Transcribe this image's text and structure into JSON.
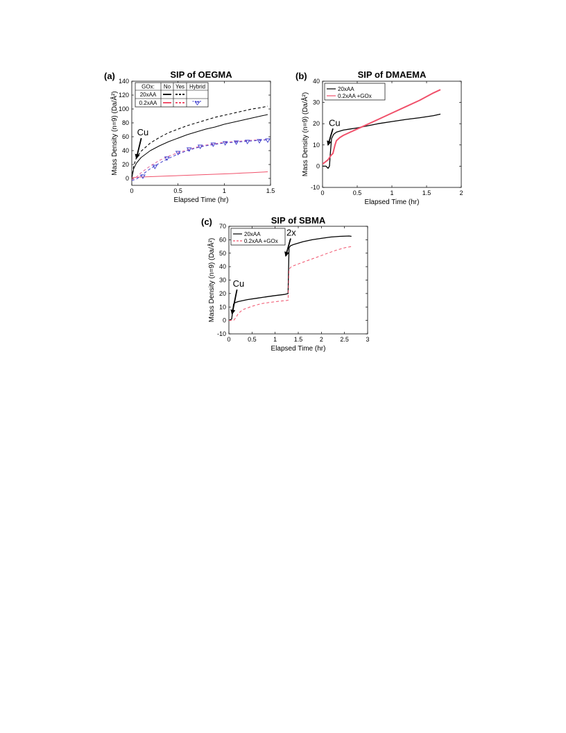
{
  "chart_data": [
    {
      "id": "a",
      "type": "line",
      "panel_label": "(a)",
      "title": "SIP of OEGMA",
      "xlabel": "Elapsed Time (hr)",
      "ylabel": "Mass Density (n=9) (Da/Å²)",
      "xlim": [
        0,
        1.5
      ],
      "ylim": [
        -10,
        140
      ],
      "xticks": [
        0,
        0.5,
        1,
        1.5
      ],
      "xtick_labels": [
        "0",
        "0.5",
        "1",
        "1.5"
      ],
      "yticks": [
        0,
        20,
        40,
        60,
        80,
        100,
        120,
        140
      ],
      "ytick_labels": [
        "0",
        "20",
        "40",
        "60",
        "80",
        "100",
        "120",
        "140"
      ],
      "annotations": [
        {
          "text": "Cu",
          "x": 0.05,
          "y": 62,
          "arrow_to": [
            0.05,
            29
          ]
        }
      ],
      "legend_table": {
        "header": [
          "GOx:",
          "No",
          "Yes",
          "Hybrid"
        ],
        "rows": [
          {
            "label": "20xAA",
            "no_color": "#000000",
            "yes_color": "#000000"
          },
          {
            "label": "0.2xAA",
            "no_color": "#f0506a",
            "yes_color": "#f0506a",
            "hybrid_color": "#3a3acc"
          }
        ]
      },
      "series": [
        {
          "color": "#000000",
          "style": "solid",
          "width": 1,
          "x": [
            0,
            0.02,
            0.05,
            0.1,
            0.2,
            0.3,
            0.4,
            0.5,
            0.6,
            0.7,
            0.8,
            0.9,
            1.0,
            1.1,
            1.2,
            1.3,
            1.4,
            1.47
          ],
          "y": [
            0,
            14,
            22,
            30,
            40,
            47,
            53,
            58,
            63,
            67,
            71,
            74,
            78,
            81,
            84,
            87,
            90,
            92
          ]
        },
        {
          "color": "#000000",
          "style": "dashed",
          "width": 1.1,
          "x": [
            0,
            0.02,
            0.05,
            0.1,
            0.2,
            0.3,
            0.4,
            0.5,
            0.6,
            0.7,
            0.8,
            0.9,
            1.0,
            1.1,
            1.2,
            1.3,
            1.4,
            1.47
          ],
          "y": [
            0,
            18,
            30,
            39,
            51,
            59,
            66,
            71,
            76,
            80,
            84,
            88,
            91,
            94,
            97,
            100,
            102,
            104
          ]
        },
        {
          "color": "#f0506a",
          "style": "solid",
          "width": 1,
          "x": [
            0,
            0.1,
            0.2,
            0.3,
            0.4,
            0.5,
            0.6,
            0.7,
            0.8,
            0.9,
            1.0,
            1.1,
            1.2,
            1.3,
            1.4,
            1.47
          ],
          "y": [
            1,
            2,
            2.5,
            3,
            3.5,
            4,
            4.5,
            5,
            5.5,
            6,
            6.5,
            7,
            7.7,
            8.3,
            9,
            9.5
          ]
        },
        {
          "color": "#e0609a",
          "style": "dashed",
          "width": 1,
          "x": [
            0,
            0.05,
            0.1,
            0.15,
            0.2,
            0.3,
            0.4,
            0.5,
            0.6,
            0.7,
            0.8,
            0.9,
            1.0,
            1.1,
            1.2,
            1.3,
            1.4,
            1.47
          ],
          "y": [
            -2,
            2,
            8,
            13,
            18,
            26,
            32,
            37,
            41,
            45,
            48,
            50,
            52,
            53,
            54,
            55,
            55.5,
            56
          ]
        },
        {
          "color": "#3a3acc",
          "style": "dashed",
          "width": 1,
          "x": [
            0,
            0.05,
            0.1,
            0.15,
            0.2,
            0.3,
            0.4,
            0.5,
            0.6,
            0.7,
            0.8,
            0.9,
            1.0,
            1.1,
            1.2,
            1.3,
            1.4,
            1.47
          ],
          "y": [
            -3,
            -1,
            4,
            9,
            14,
            22,
            29,
            35,
            40,
            44,
            47,
            49,
            51,
            52,
            53,
            54,
            55,
            55.5
          ]
        },
        {
          "color": "#3a3acc",
          "style": "triangles",
          "x": [
            0.12,
            0.25,
            0.38,
            0.5,
            0.62,
            0.74,
            0.88,
            1.01,
            1.13,
            1.25,
            1.38,
            1.47
          ],
          "y": [
            3,
            17,
            29,
            37,
            42,
            46,
            49,
            51,
            52,
            53,
            54,
            55
          ]
        }
      ]
    },
    {
      "id": "b",
      "type": "line",
      "panel_label": "(b)",
      "title": "SIP of DMAEMA",
      "xlabel": "Elapsed Time (hr)",
      "ylabel": "Mass Density (n=9) (Da/Å²)",
      "xlim": [
        0,
        2
      ],
      "ylim": [
        -10,
        40
      ],
      "xticks": [
        0,
        0.5,
        1,
        1.5,
        2
      ],
      "xtick_labels": [
        "0",
        "0.5",
        "1",
        "1.5",
        "2"
      ],
      "yticks": [
        -10,
        0,
        10,
        20,
        30,
        40
      ],
      "ytick_labels": [
        "-10",
        "0",
        "10",
        "20",
        "30",
        "40"
      ],
      "annotations": [
        {
          "text": "Cu",
          "x": 0.08,
          "y": 19,
          "arrow_to": [
            0.08,
            10
          ]
        }
      ],
      "legend": [
        {
          "name": "20xAA",
          "color": "#000000"
        },
        {
          "name": "0.2xAA +GOx",
          "color": "#f0506a"
        }
      ],
      "series": [
        {
          "name": "20xAA",
          "color": "#000000",
          "style": "solid",
          "width": 1.3,
          "x": [
            0,
            0.05,
            0.08,
            0.1,
            0.11,
            0.13,
            0.16,
            0.2,
            0.3,
            0.4,
            0.5,
            0.6,
            0.8,
            1.0,
            1.2,
            1.4,
            1.6,
            1.7
          ],
          "y": [
            0,
            0,
            -1,
            0,
            5,
            13,
            15,
            16,
            17,
            17.5,
            18,
            18.7,
            20,
            21,
            22,
            22.8,
            23.8,
            24.5
          ]
        },
        {
          "name": "0.2xAA +GOx",
          "color": "#f0506a",
          "style": "solid",
          "width": 2,
          "x": [
            0,
            0.04,
            0.08,
            0.1,
            0.12,
            0.15,
            0.18,
            0.2,
            0.25,
            0.3,
            0.4,
            0.5,
            0.6,
            0.8,
            1.0,
            1.2,
            1.4,
            1.6,
            1.7
          ],
          "y": [
            1,
            2,
            3,
            4,
            5,
            6,
            10,
            12,
            13.5,
            14.5,
            16,
            17.5,
            19,
            22,
            25,
            28,
            31,
            34.5,
            36
          ]
        }
      ]
    },
    {
      "id": "c",
      "type": "line",
      "panel_label": "(c)",
      "title": "SIP of SBMA",
      "xlabel": "Elapsed Time (hr)",
      "ylabel": "Mass Density (n=9) (Da/Å²)",
      "xlim": [
        0,
        3
      ],
      "ylim": [
        -10,
        70
      ],
      "xticks": [
        0,
        0.5,
        1,
        1.5,
        2,
        2.5,
        3
      ],
      "xtick_labels": [
        "0",
        "0.5",
        "1",
        "1.5",
        "2",
        "2.5",
        "3"
      ],
      "yticks": [
        -10,
        0,
        10,
        20,
        30,
        40,
        50,
        60,
        70
      ],
      "ytick_labels": [
        "-10",
        "0",
        "10",
        "20",
        "30",
        "40",
        "50",
        "60",
        "70"
      ],
      "annotations": [
        {
          "text": "Cu",
          "x": 0.07,
          "y": 25,
          "arrow_to": [
            0.07,
            5
          ]
        },
        {
          "text": "2x",
          "x": 1.23,
          "y": 63,
          "arrow_to": [
            1.23,
            48
          ]
        }
      ],
      "legend": [
        {
          "name": "20xAA",
          "color": "#000000"
        },
        {
          "name": "0.2xAA +GOx",
          "color": "#f0506a"
        }
      ],
      "series": [
        {
          "name": "20xAA",
          "color": "#000000",
          "style": "solid",
          "width": 1.3,
          "x": [
            0,
            0.06,
            0.1,
            0.12,
            0.2,
            0.4,
            0.6,
            0.8,
            1.0,
            1.2,
            1.28,
            1.3,
            1.33,
            1.4,
            1.6,
            1.8,
            2.0,
            2.2,
            2.4,
            2.6,
            2.65
          ],
          "y": [
            0,
            1,
            12,
            13,
            14,
            15.5,
            16.5,
            17.5,
            18.5,
            19.3,
            20,
            54,
            55.5,
            56.5,
            58.5,
            60,
            61,
            62,
            62.5,
            62.8,
            62.5
          ]
        },
        {
          "name": "0.2xAA +GOx",
          "color": "#f0506a",
          "style": "dashed",
          "width": 1,
          "x": [
            0,
            0.1,
            0.15,
            0.2,
            0.3,
            0.5,
            0.7,
            0.9,
            1.1,
            1.28,
            1.3,
            1.35,
            1.5,
            1.7,
            1.9,
            2.1,
            2.3,
            2.5,
            2.65
          ],
          "y": [
            0,
            0,
            2,
            5,
            8,
            10.5,
            12.5,
            13.5,
            14.3,
            15,
            38,
            40,
            42,
            44.5,
            47,
            49.5,
            52,
            54,
            55
          ]
        }
      ]
    }
  ]
}
